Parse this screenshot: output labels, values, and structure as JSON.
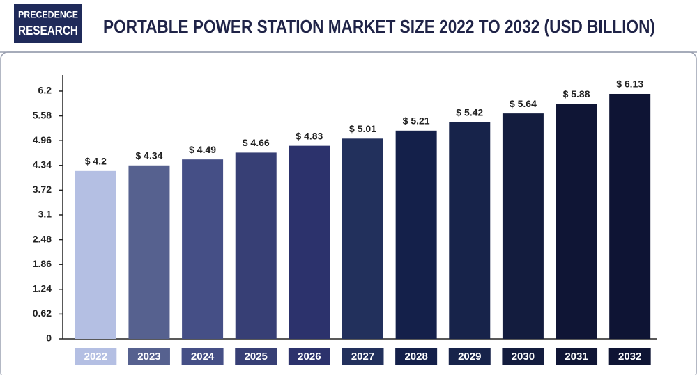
{
  "header": {
    "logo": [
      "PRECEDENCE",
      "RESEARCH"
    ]
  },
  "chart_data": {
    "type": "bar",
    "title": "PORTABLE POWER STATION MARKET SIZE 2022 TO 2032 (USD BILLION)",
    "categories": [
      "2022",
      "2023",
      "2024",
      "2025",
      "2026",
      "2027",
      "2028",
      "2029",
      "2030",
      "2031",
      "2032"
    ],
    "values": [
      4.2,
      4.34,
      4.49,
      4.66,
      4.83,
      5.01,
      5.21,
      5.42,
      5.64,
      5.88,
      6.13
    ],
    "value_labels": [
      "$ 4.2",
      "$ 4.34",
      "$ 4.49",
      "$ 4.66",
      "$ 4.83",
      "$ 5.01",
      "$ 5.21",
      "$ 5.42",
      "$ 5.64",
      "$ 5.88",
      "$ 6.13"
    ],
    "colors": [
      "#b4bfe3",
      "#56618f",
      "#454f86",
      "#373f75",
      "#2c326c",
      "#22305c",
      "#14204a",
      "#17234a",
      "#131c3e",
      "#0f1535",
      "#0e1434"
    ],
    "ylim": [
      0,
      6.6
    ],
    "yticks": [
      0,
      0.62,
      1.24,
      1.86,
      2.48,
      3.1,
      3.72,
      4.34,
      4.96,
      5.58,
      6.2
    ],
    "grid": false
  }
}
